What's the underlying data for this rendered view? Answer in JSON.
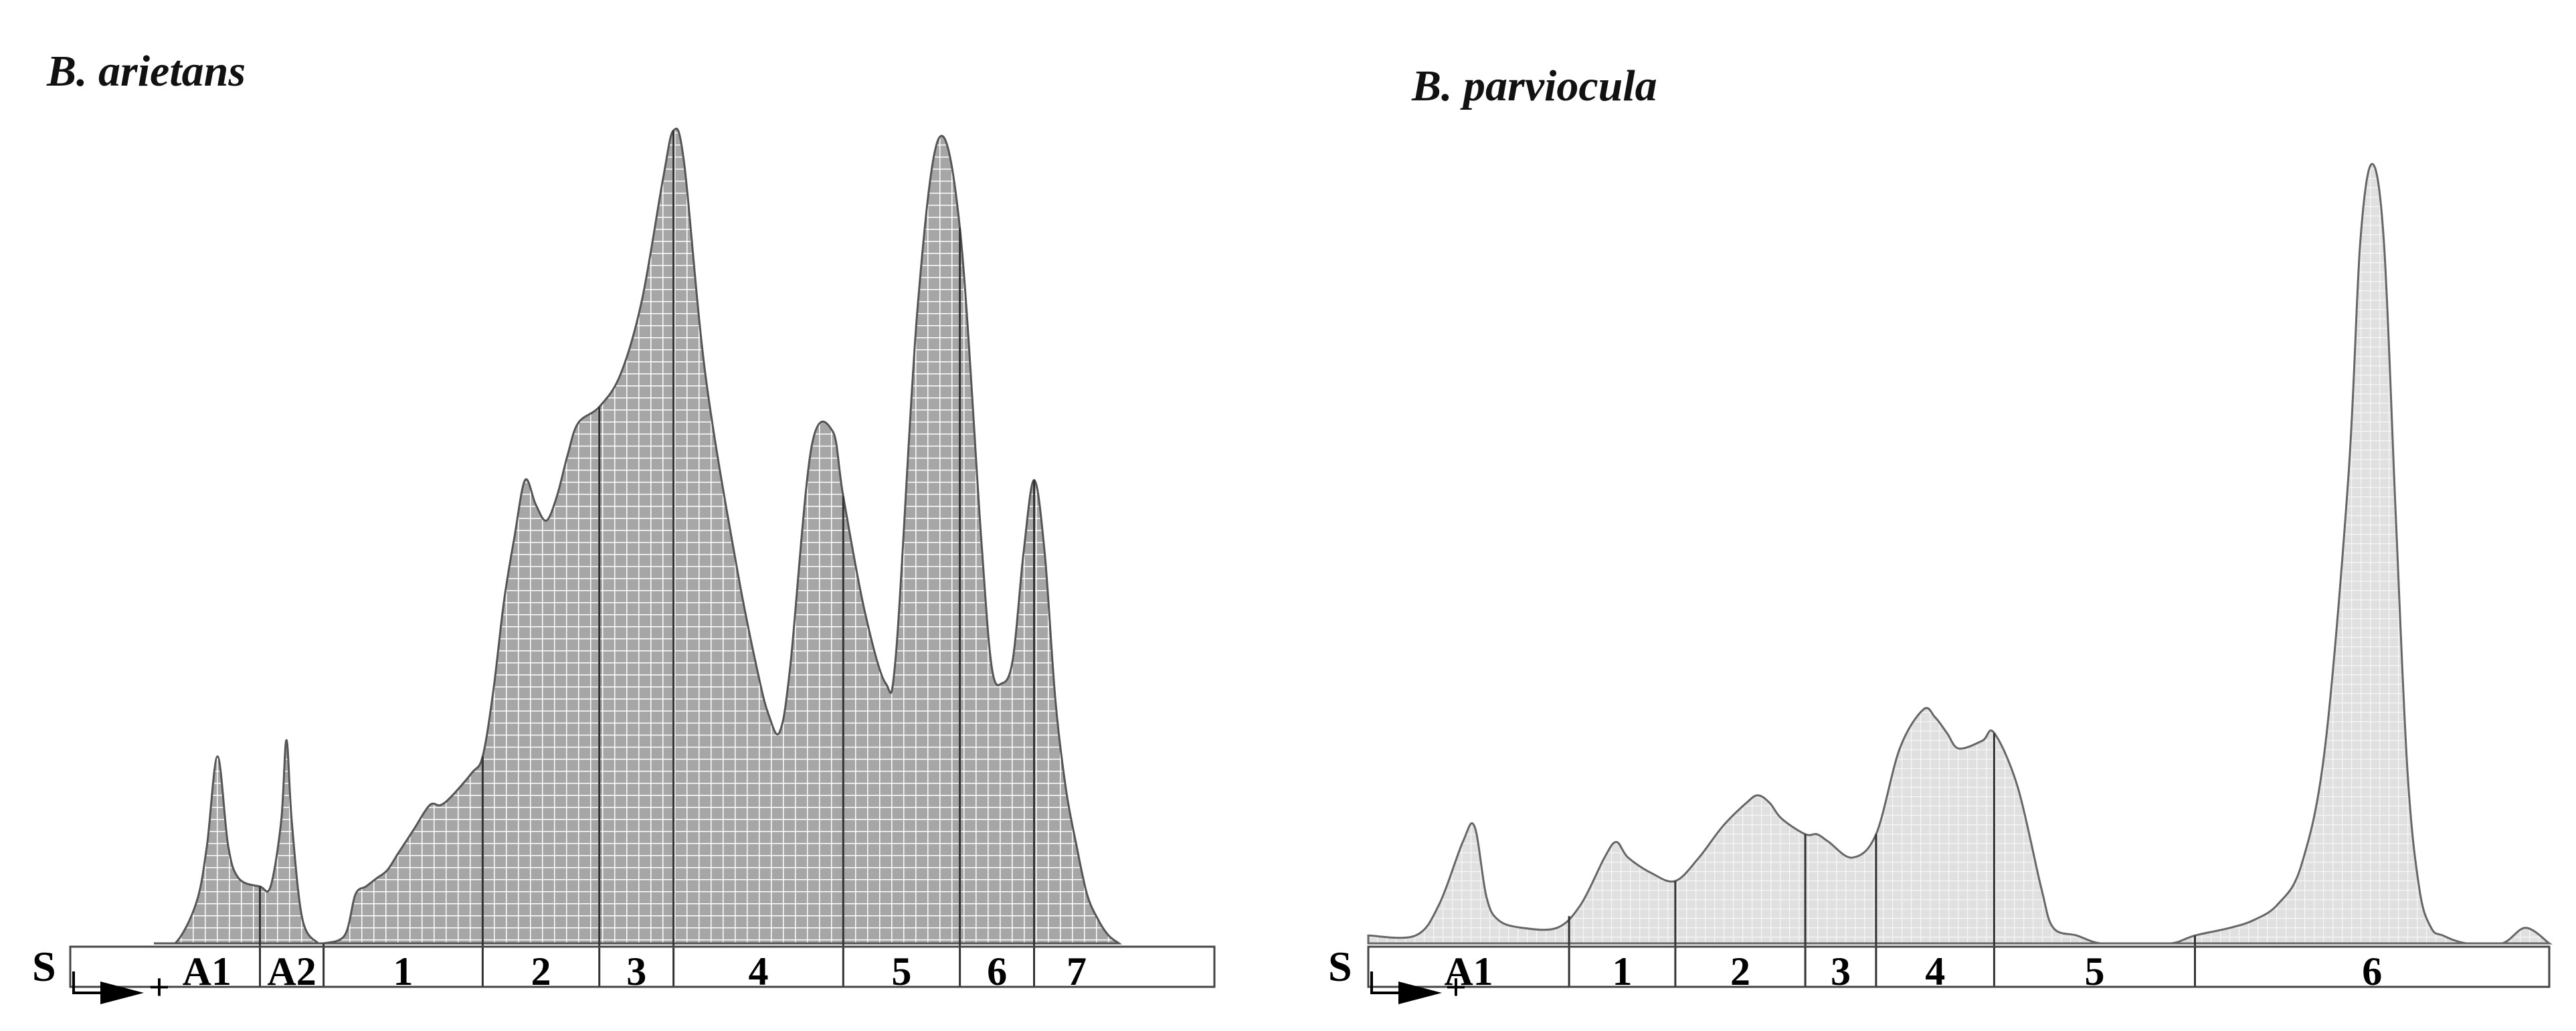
{
  "chart_data": [
    {
      "type": "area",
      "title": "B. arietans",
      "start_label": "S",
      "direction_label": "+",
      "grid_style": "dense",
      "colors": {
        "fill": "#a6a6a6",
        "grid": "#ffffff",
        "outline": "#555555"
      },
      "fractions": [
        "A1",
        "A2",
        "1",
        "2",
        "3",
        "4",
        "5",
        "6",
        "7"
      ],
      "fraction_bounds": [
        [
          0.0,
          0.1
        ],
        [
          0.1,
          0.16
        ],
        [
          0.16,
          0.31
        ],
        [
          0.31,
          0.42
        ],
        [
          0.42,
          0.49
        ],
        [
          0.49,
          0.65
        ],
        [
          0.65,
          0.76
        ],
        [
          0.76,
          0.83
        ],
        [
          0.83,
          0.91
        ]
      ],
      "profile": {
        "x": [
          0.0,
          0.02,
          0.04,
          0.05,
          0.06,
          0.07,
          0.08,
          0.1,
          0.11,
          0.12,
          0.125,
          0.13,
          0.14,
          0.155,
          0.16,
          0.18,
          0.19,
          0.2,
          0.21,
          0.22,
          0.23,
          0.245,
          0.26,
          0.27,
          0.28,
          0.3,
          0.31,
          0.32,
          0.33,
          0.34,
          0.35,
          0.36,
          0.37,
          0.38,
          0.39,
          0.4,
          0.42,
          0.44,
          0.46,
          0.48,
          0.49,
          0.5,
          0.52,
          0.55,
          0.57,
          0.58,
          0.59,
          0.6,
          0.62,
          0.64,
          0.65,
          0.67,
          0.69,
          0.7,
          0.72,
          0.74,
          0.76,
          0.78,
          0.79,
          0.8,
          0.81,
          0.82,
          0.83,
          0.84,
          0.85,
          0.86,
          0.87,
          0.88,
          0.89,
          0.9,
          0.91
        ],
        "y": [
          0.0,
          0.0,
          0.05,
          0.12,
          0.23,
          0.12,
          0.08,
          0.07,
          0.07,
          0.15,
          0.25,
          0.15,
          0.03,
          0.0,
          0.0,
          0.01,
          0.06,
          0.07,
          0.08,
          0.09,
          0.11,
          0.14,
          0.17,
          0.17,
          0.18,
          0.21,
          0.23,
          0.31,
          0.42,
          0.5,
          0.57,
          0.54,
          0.52,
          0.55,
          0.6,
          0.64,
          0.66,
          0.7,
          0.79,
          0.94,
          1.0,
          0.96,
          0.7,
          0.46,
          0.33,
          0.28,
          0.26,
          0.34,
          0.61,
          0.63,
          0.55,
          0.41,
          0.32,
          0.36,
          0.78,
          0.99,
          0.88,
          0.5,
          0.34,
          0.32,
          0.35,
          0.48,
          0.57,
          0.48,
          0.3,
          0.19,
          0.12,
          0.06,
          0.03,
          0.01,
          0.0
        ]
      }
    },
    {
      "type": "area",
      "title": "B. parviocula",
      "start_label": "S",
      "direction_label": "+",
      "grid_style": "fine",
      "colors": {
        "fill": "#e0e0e0",
        "grid": "#f8f8f8",
        "outline": "#666666"
      },
      "fractions": [
        "A1",
        "1",
        "2",
        "3",
        "4",
        "5",
        "6"
      ],
      "fraction_bounds": [
        [
          0.0,
          0.17
        ],
        [
          0.17,
          0.26
        ],
        [
          0.26,
          0.37
        ],
        [
          0.37,
          0.43
        ],
        [
          0.43,
          0.53
        ],
        [
          0.53,
          0.7
        ],
        [
          0.7,
          1.0
        ]
      ],
      "profile": {
        "x": [
          0.0,
          0.04,
          0.06,
          0.08,
          0.09,
          0.1,
          0.11,
          0.13,
          0.16,
          0.18,
          0.2,
          0.21,
          0.22,
          0.24,
          0.26,
          0.28,
          0.3,
          0.32,
          0.33,
          0.34,
          0.35,
          0.37,
          0.38,
          0.39,
          0.41,
          0.43,
          0.45,
          0.47,
          0.48,
          0.49,
          0.5,
          0.52,
          0.53,
          0.55,
          0.57,
          0.58,
          0.6,
          0.62,
          0.65,
          0.68,
          0.7,
          0.73,
          0.75,
          0.77,
          0.79,
          0.81,
          0.83,
          0.84,
          0.85,
          0.86,
          0.87,
          0.88,
          0.89,
          0.9,
          0.91,
          0.93,
          0.96,
          0.98,
          1.0
        ],
        "y": [
          0.01,
          0.01,
          0.05,
          0.13,
          0.15,
          0.06,
          0.03,
          0.02,
          0.02,
          0.05,
          0.11,
          0.13,
          0.11,
          0.09,
          0.08,
          0.11,
          0.15,
          0.18,
          0.19,
          0.18,
          0.16,
          0.14,
          0.14,
          0.13,
          0.11,
          0.14,
          0.25,
          0.3,
          0.29,
          0.27,
          0.25,
          0.26,
          0.27,
          0.2,
          0.07,
          0.02,
          0.01,
          0.0,
          0.0,
          0.0,
          0.01,
          0.02,
          0.03,
          0.05,
          0.1,
          0.25,
          0.6,
          0.9,
          1.0,
          0.9,
          0.55,
          0.22,
          0.07,
          0.02,
          0.01,
          0.0,
          0.0,
          0.02,
          0.0
        ]
      }
    }
  ]
}
